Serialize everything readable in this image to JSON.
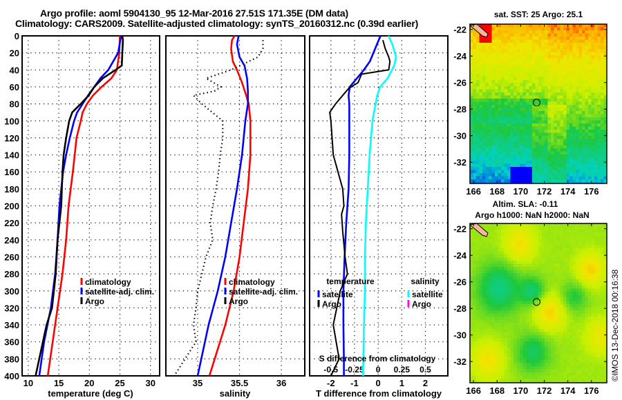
{
  "header": {
    "title_line1": "Argo profile: aoml 5904130_95 12-Mar-2016 27.51S 171.35E (DM data)",
    "title_line2": "Climatology: CARS2009. Satellite-adjusted climatology: synTS_20160312.nc (0.39d earlier)"
  },
  "colors": {
    "climatology": "#ff0000",
    "satellite": "#0000ff",
    "argo": "#000000",
    "salinity_satellite": "#00ffff",
    "salinity_argo": "#ff00ff",
    "land": "#f4b898"
  },
  "chart_data": [
    {
      "type": "line",
      "name": "temperature-profile",
      "xlabel": "temperature (deg C)",
      "ylabel": "",
      "xlim": [
        9,
        31.5
      ],
      "ylim": [
        400,
        0
      ],
      "xticks": [
        10,
        15,
        20,
        25,
        30
      ],
      "yticks": [
        0,
        20,
        40,
        60,
        80,
        100,
        120,
        140,
        160,
        180,
        200,
        220,
        240,
        260,
        280,
        300,
        320,
        340,
        360,
        380,
        400
      ],
      "grid": true,
      "legend": {
        "position": "center-right",
        "entries": [
          "climatology",
          "satellite-adj. clim.",
          "Argo"
        ]
      },
      "series": [
        {
          "name": "climatology",
          "color": "#ff0000",
          "depth": [
            0,
            20,
            40,
            50,
            60,
            70,
            80,
            90,
            100,
            120,
            140,
            160,
            200,
            240,
            280,
            320,
            360,
            400
          ],
          "values": [
            25.0,
            24.9,
            24.5,
            23.6,
            22.0,
            20.6,
            19.6,
            18.9,
            18.6,
            17.9,
            17.6,
            17.3,
            16.6,
            16.2,
            15.6,
            14.8,
            14.0,
            13.2
          ]
        },
        {
          "name": "satellite-adj. clim.",
          "color": "#0000ff",
          "depth": [
            0,
            20,
            40,
            50,
            60,
            70,
            80,
            90,
            100,
            120,
            140,
            160,
            200,
            240,
            280,
            320,
            360,
            400
          ],
          "values": [
            25.2,
            24.7,
            23.1,
            21.8,
            20.8,
            19.8,
            18.9,
            18.0,
            17.5,
            16.8,
            16.2,
            15.7,
            15.1,
            14.8,
            14.4,
            13.7,
            12.6,
            11.8
          ]
        },
        {
          "name": "Argo",
          "color": "#000000",
          "depth": [
            0,
            5,
            20,
            35,
            40,
            50,
            60,
            70,
            80,
            90,
            100,
            120,
            140,
            160,
            200,
            240,
            280,
            320,
            340,
            360,
            400
          ],
          "values": [
            25.4,
            25.5,
            25.4,
            25.3,
            24.3,
            22.2,
            20.8,
            19.9,
            18.6,
            17.2,
            16.7,
            16.2,
            15.8,
            15.6,
            15.4,
            14.8,
            14.5,
            13.9,
            13.0,
            12.4,
            11.2
          ]
        }
      ]
    },
    {
      "type": "line",
      "name": "salinity-profile",
      "xlabel": "salinity",
      "ylabel": "",
      "xlim": [
        34.62,
        36.28
      ],
      "ylim": [
        400,
        0
      ],
      "xticks": [
        35,
        35.5,
        36
      ],
      "grid": true,
      "legend": {
        "position": "center-right",
        "entries": [
          "climatology",
          "satellite-adj. clim.",
          "Argo"
        ]
      },
      "series": [
        {
          "name": "climatology",
          "color": "#ff0000",
          "depth": [
            0,
            5,
            15,
            30,
            40,
            55,
            70,
            80,
            100,
            140,
            180,
            220,
            260,
            300,
            340,
            400
          ],
          "values": [
            35.44,
            35.41,
            35.4,
            35.42,
            35.47,
            35.53,
            35.58,
            35.61,
            35.63,
            35.63,
            35.6,
            35.55,
            35.5,
            35.43,
            35.33,
            35.14
          ]
        },
        {
          "name": "satellite-adj. clim.",
          "color": "#0000ff",
          "depth": [
            0,
            10,
            25,
            35,
            50,
            65,
            80,
            100,
            140,
            180,
            220,
            260,
            300,
            340,
            400
          ],
          "values": [
            35.49,
            35.47,
            35.5,
            35.56,
            35.59,
            35.6,
            35.6,
            35.57,
            35.53,
            35.47,
            35.4,
            35.33,
            35.24,
            35.13,
            35.0
          ]
        },
        {
          "name": "Argo",
          "color": "#000000",
          "style": "dotted",
          "depth": [
            5,
            15,
            25,
            40,
            50,
            60,
            65,
            70,
            80,
            100,
            120,
            140,
            160,
            180,
            200,
            220,
            240,
            260,
            280,
            300,
            320,
            340,
            360,
            380,
            400
          ],
          "values": [
            35.78,
            35.78,
            35.72,
            35.4,
            35.1,
            35.28,
            35.2,
            34.95,
            35.05,
            35.3,
            35.3,
            35.27,
            35.25,
            35.22,
            35.18,
            35.15,
            35.18,
            35.1,
            35.05,
            35.0,
            34.98,
            34.95,
            34.98,
            34.85,
            34.72
          ]
        }
      ]
    },
    {
      "type": "line",
      "name": "difference-profile",
      "xlabel": "T difference from climatology",
      "xlabel_top": "S difference from climatology",
      "xlim": [
        -2.9,
        2.95
      ],
      "xticks": [
        -2,
        -1,
        0,
        1,
        2
      ],
      "xlim_salinity": [
        -0.725,
        0.7375
      ],
      "xticks_salinity": [
        -0.5,
        -0.25,
        0,
        0.25,
        0.5
      ],
      "ylim": [
        400,
        0
      ],
      "grid": true,
      "legend": {
        "position": "bottom",
        "groups": [
          {
            "title": "temperature",
            "entries": [
              "satellite",
              "Argo"
            ]
          },
          {
            "title": "salinity",
            "entries": [
              "satellite",
              "Argo"
            ]
          }
        ]
      },
      "series": [
        {
          "name": "temperature satellite",
          "axis": "T",
          "color": "#0000ff",
          "depth": [
            0,
            10,
            20,
            30,
            40,
            50,
            60,
            70,
            80,
            100,
            140,
            180,
            220,
            260,
            300,
            340,
            380,
            400
          ],
          "values": [
            0.1,
            -0.05,
            -0.2,
            -0.35,
            -0.6,
            -0.9,
            -1.2,
            -1.25,
            -1.22,
            -1.22,
            -1.22,
            -1.25,
            -1.35,
            -1.42,
            -1.47,
            -1.47,
            -1.45,
            -1.45
          ]
        },
        {
          "name": "temperature Argo",
          "axis": "T",
          "color": "#000000",
          "depth": [
            5,
            15,
            25,
            30,
            40,
            45,
            55,
            62,
            70,
            80,
            90,
            100,
            140,
            180,
            200,
            210,
            230,
            260,
            280,
            300,
            340,
            380,
            400
          ],
          "values": [
            0.2,
            0.3,
            0.45,
            0.5,
            0.45,
            -0.7,
            -0.85,
            -1.25,
            -1.5,
            -1.8,
            -2.05,
            -2.0,
            -1.9,
            -1.5,
            -1.45,
            -1.55,
            -1.5,
            -1.4,
            -1.3,
            -1.6,
            -1.9,
            -1.65,
            -2.0
          ]
        },
        {
          "name": "salinity satellite",
          "axis": "S",
          "color": "#00ffff",
          "depth": [
            0,
            10,
            25,
            35,
            50,
            60,
            70,
            100,
            140,
            180,
            220,
            260,
            300,
            340,
            400
          ],
          "values": [
            0.11,
            0.15,
            0.19,
            0.17,
            0.1,
            0.02,
            -0.01,
            -0.06,
            -0.09,
            -0.11,
            -0.13,
            -0.14,
            -0.14,
            -0.15,
            -0.16
          ]
        }
      ]
    },
    {
      "type": "heatmap",
      "name": "sst-map",
      "title": "sat. SST: 25 Argo: 25.1",
      "xlim": [
        165.7,
        177.3
      ],
      "ylim": [
        -33.6,
        -21.6
      ],
      "xticks": [
        166,
        168,
        170,
        172,
        174,
        176
      ],
      "yticks": [
        -22,
        -24,
        -26,
        -28,
        -30,
        -32
      ],
      "argo_position": {
        "lon": 171.35,
        "lat": -27.51
      }
    },
    {
      "type": "heatmap",
      "name": "sla-map",
      "title_line1": "Altim. SLA: -0.11",
      "title_line2": "Argo h1000: NaN h2000: NaN",
      "xlim": [
        165.7,
        177.3
      ],
      "ylim": [
        -33.6,
        -21.6
      ],
      "xticks": [
        166,
        168,
        170,
        172,
        174,
        176
      ],
      "yticks": [
        -22,
        -24,
        -26,
        -28,
        -30,
        -32
      ],
      "argo_position": {
        "lon": 171.35,
        "lat": -27.51
      }
    }
  ],
  "footer": {
    "stamp": "©IMOS 13-Dec-2018 00:16:38"
  }
}
